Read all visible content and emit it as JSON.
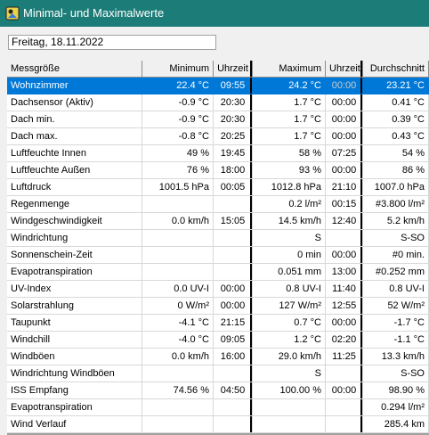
{
  "window": {
    "title": "Minimal- und Maximalwerte",
    "icon": "app-logo-icon"
  },
  "date_field": {
    "value": "Freitag, 18.11.2022"
  },
  "table": {
    "headers": {
      "name": "Messgröße",
      "min": "Minimum",
      "min_time": "Uhrzeit",
      "max": "Maximum",
      "max_time": "Uhrzeit",
      "avg": "Durchschnitt"
    },
    "rows": [
      {
        "name": "Wohnzimmer",
        "min": "22.4 °C",
        "min_time": "09:55",
        "max": "24.2 °C",
        "max_time": "00:00",
        "avg": "23.21 °C",
        "selected": true
      },
      {
        "name": "Dachsensor (Aktiv)",
        "min": "-0.9 °C",
        "min_time": "20:30",
        "max": "1.7 °C",
        "max_time": "00:00",
        "avg": "0.41 °C"
      },
      {
        "name": "Dach min.",
        "min": "-0.9 °C",
        "min_time": "20:30",
        "max": "1.7 °C",
        "max_time": "00:00",
        "avg": "0.39 °C"
      },
      {
        "name": "Dach max.",
        "min": "-0.8 °C",
        "min_time": "20:25",
        "max": "1.7 °C",
        "max_time": "00:00",
        "avg": "0.43 °C"
      },
      {
        "name": "Luftfeuchte Innen",
        "min": "49 %",
        "min_time": "19:45",
        "max": "58 %",
        "max_time": "07:25",
        "avg": "54 %"
      },
      {
        "name": "Luftfeuchte Außen",
        "min": "76 %",
        "min_time": "18:00",
        "max": "93 %",
        "max_time": "00:00",
        "avg": "86 %"
      },
      {
        "name": "Luftdruck",
        "min": "1001.5 hPa",
        "min_time": "00:05",
        "max": "1012.8 hPa",
        "max_time": "21:10",
        "avg": "1007.0 hPa"
      },
      {
        "name": "Regenmenge",
        "min": "",
        "min_time": "",
        "max": "0.2 l/m²",
        "max_time": "00:15",
        "avg": "#3.800 l/m²"
      },
      {
        "name": "Windgeschwindigkeit",
        "min": "0.0 km/h",
        "min_time": "15:05",
        "max": "14.5 km/h",
        "max_time": "12:40",
        "avg": "5.2 km/h"
      },
      {
        "name": "Windrichtung",
        "min": "",
        "min_time": "",
        "max": "S",
        "max_time": "",
        "avg": "S-SO"
      },
      {
        "name": "Sonnenschein-Zeit",
        "min": "",
        "min_time": "",
        "max": "0 min",
        "max_time": "00:00",
        "avg": "#0 min."
      },
      {
        "name": "Evapotranspiration",
        "min": "",
        "min_time": "",
        "max": "0.051 mm",
        "max_time": "13:00",
        "avg": "#0.252 mm"
      },
      {
        "name": "UV-Index",
        "min": "0.0 UV-I",
        "min_time": "00:00",
        "max": "0.8 UV-I",
        "max_time": "11:40",
        "avg": "0.8 UV-I"
      },
      {
        "name": "Solarstrahlung",
        "min": "0 W/m²",
        "min_time": "00:00",
        "max": "127 W/m²",
        "max_time": "12:55",
        "avg": "52 W/m²"
      },
      {
        "name": "Taupunkt",
        "min": "-4.1 °C",
        "min_time": "21:15",
        "max": "0.7 °C",
        "max_time": "00:00",
        "avg": "-1.7 °C"
      },
      {
        "name": "Windchill",
        "min": "-4.0 °C",
        "min_time": "09:05",
        "max": "1.2 °C",
        "max_time": "02:20",
        "avg": "-1.1 °C"
      },
      {
        "name": "Windböen",
        "min": "0.0 km/h",
        "min_time": "16:00",
        "max": "29.0 km/h",
        "max_time": "11:25",
        "avg": "13.3 km/h"
      },
      {
        "name": "Windrichtung Windböen",
        "min": "",
        "min_time": "",
        "max": "S",
        "max_time": "",
        "avg": "S-SO"
      },
      {
        "name": "ISS Empfang",
        "min": "74.56 %",
        "min_time": "04:50",
        "max": "100.00 %",
        "max_time": "00:00",
        "avg": "98.90 %"
      },
      {
        "name": "Evapotranspiration",
        "min": "",
        "min_time": "",
        "max": "",
        "max_time": "",
        "avg": "0.294 l/m²"
      },
      {
        "name": "Wind Verlauf",
        "min": "",
        "min_time": "",
        "max": "",
        "max_time": "",
        "avg": "285.4 km"
      }
    ]
  }
}
